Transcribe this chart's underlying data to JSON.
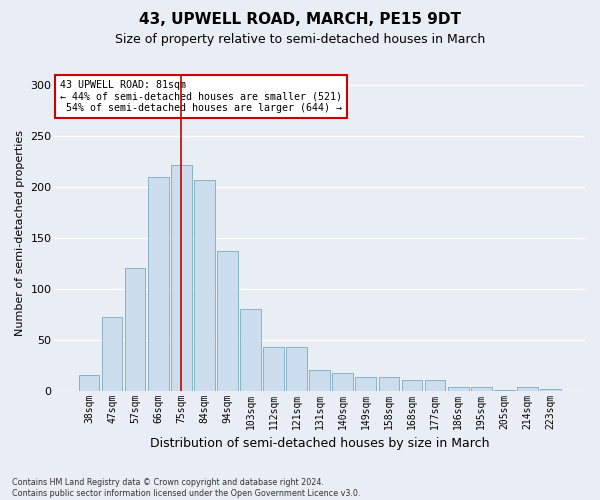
{
  "title": "43, UPWELL ROAD, MARCH, PE15 9DT",
  "subtitle": "Size of property relative to semi-detached houses in March",
  "xlabel": "Distribution of semi-detached houses by size in March",
  "ylabel": "Number of semi-detached properties",
  "categories": [
    "38sqm",
    "47sqm",
    "57sqm",
    "66sqm",
    "75sqm",
    "84sqm",
    "94sqm",
    "103sqm",
    "112sqm",
    "121sqm",
    "131sqm",
    "140sqm",
    "149sqm",
    "158sqm",
    "168sqm",
    "177sqm",
    "186sqm",
    "195sqm",
    "205sqm",
    "214sqm",
    "223sqm"
  ],
  "values": [
    15,
    72,
    120,
    210,
    222,
    207,
    137,
    80,
    43,
    43,
    20,
    17,
    13,
    13,
    10,
    10,
    4,
    4,
    1,
    4,
    2
  ],
  "bar_color": "#ccdded",
  "bar_edge_color": "#7aaabf",
  "vline_index": 4.5,
  "vline_color": "#cc0000",
  "annotation_line1": "43 UPWELL ROAD: 81sqm",
  "annotation_line2": "← 44% of semi-detached houses are smaller (521)",
  "annotation_line3": " 54% of semi-detached houses are larger (644) →",
  "annotation_box_color": "#ffffff",
  "annotation_box_edge": "#cc0000",
  "footer_text": "Contains HM Land Registry data © Crown copyright and database right 2024.\nContains public sector information licensed under the Open Government Licence v3.0.",
  "ylim": [
    0,
    310
  ],
  "yticks": [
    0,
    50,
    100,
    150,
    200,
    250,
    300
  ],
  "bg_color": "#e8eef4",
  "plot_bg_color": "#e8eef4",
  "grid_color": "#ffffff",
  "title_fontsize": 11,
  "subtitle_fontsize": 9,
  "tick_fontsize": 7,
  "ylabel_fontsize": 8,
  "xlabel_fontsize": 9
}
